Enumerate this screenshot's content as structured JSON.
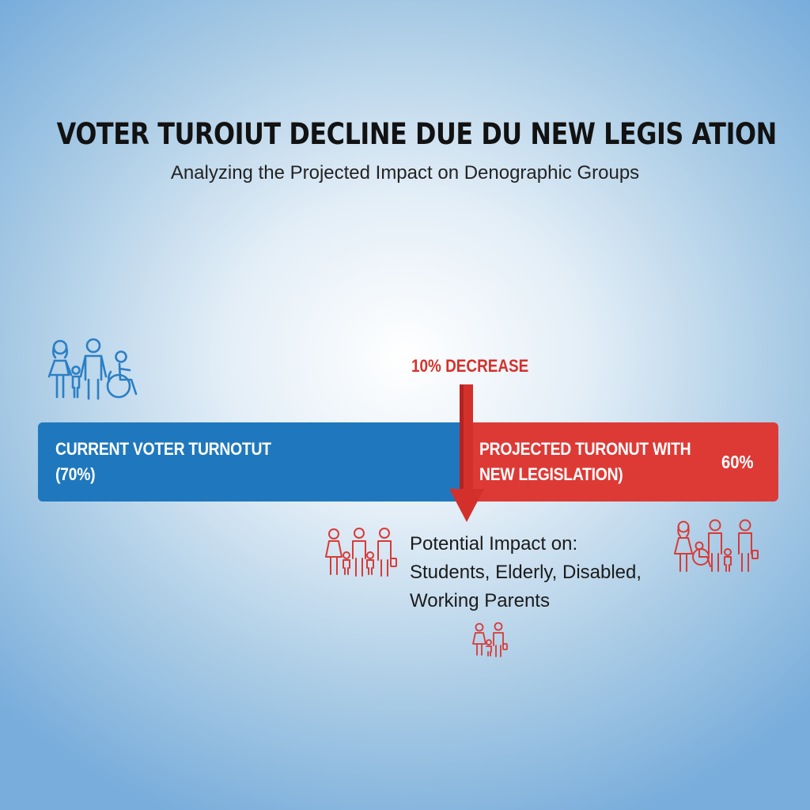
{
  "header": {
    "title": "VOTER TUROIUT DECLINE DUE DU NEW LEGIS ATION",
    "subtitle": "Analyzing the Projected Impact on Denographic Groups"
  },
  "bars": {
    "current": {
      "line1": "CURRENT VOTER TURNOTUT",
      "line2": "(70%)",
      "value_percent": 70,
      "color": "#1f78bd"
    },
    "projected": {
      "line1": "PROJECTED TURONUT WITH",
      "line2": "NEW LEGISLATION)",
      "value_label": "60%",
      "value_percent": 60,
      "color": "#dd3a36"
    }
  },
  "decrease": {
    "label": "10% DECREASE",
    "color": "#d6302b"
  },
  "impact": {
    "line1": "Potential Impact on:",
    "line2": "Students, Elderly, Disabled,",
    "line3": "Working Parents"
  },
  "icons": {
    "left_group": "family-wheelchair-icon",
    "center_group": "family-group-icon",
    "right_group": "family-wheelchair-icon",
    "bottom_group": "parent-child-icon"
  }
}
